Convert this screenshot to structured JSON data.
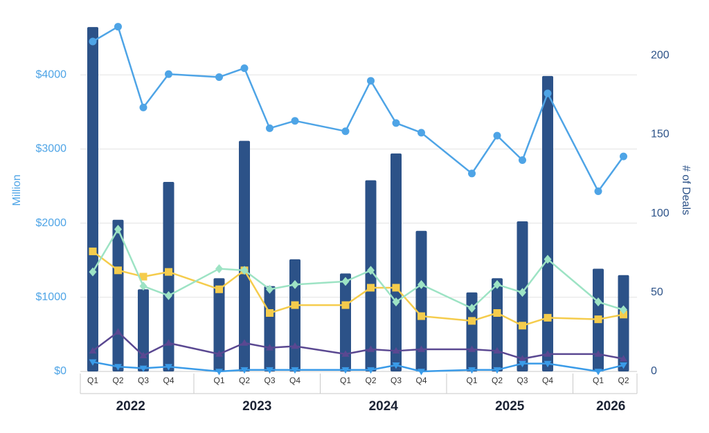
{
  "chart_data": {
    "type": "bar",
    "y_label": "Million",
    "y2_label": "# of Deals",
    "categories": [
      "Q1",
      "Q2",
      "Q3",
      "Q4",
      "Q1",
      "Q2",
      "Q3",
      "Q4",
      "Q1",
      "Q2",
      "Q3",
      "Q4",
      "Q1",
      "Q2",
      "Q3",
      "Q4",
      "Q1",
      "Q2"
    ],
    "groups": [
      {
        "label": "2022",
        "size": 4
      },
      {
        "label": "2023",
        "size": 4
      },
      {
        "label": "2024",
        "size": 4
      },
      {
        "label": "2025",
        "size": 4
      },
      {
        "label": "2026",
        "size": 2
      }
    ],
    "ylim": [
      0,
      4730
    ],
    "yticks": [
      {
        "value": 0,
        "label": "$0"
      },
      {
        "value": 1000,
        "label": "$1000"
      },
      {
        "value": 2000,
        "label": "$2000"
      },
      {
        "value": 3000,
        "label": "$3000"
      },
      {
        "value": 4000,
        "label": "$4000"
      }
    ],
    "y2lim": [
      0,
      222
    ],
    "y2ticks": [
      0,
      50,
      100,
      150,
      200
    ],
    "grid": true,
    "series": [
      {
        "type": "bar",
        "axis": "y2",
        "color": "#2c5288",
        "values": [
          218,
          96,
          52,
          120,
          59,
          146,
          54,
          71,
          62,
          121,
          138,
          89,
          50,
          59,
          95,
          187,
          65,
          61
        ]
      },
      {
        "type": "line",
        "axis": "y",
        "color": "#4ea4e6",
        "marker": "circle",
        "values": [
          4450,
          4650,
          3560,
          4010,
          3970,
          4090,
          3280,
          3380,
          3240,
          3920,
          3350,
          3220,
          2670,
          3180,
          2850,
          3750,
          2430,
          2900
        ]
      },
      {
        "type": "line",
        "axis": "y2",
        "color": "#f5cc4c",
        "marker": "square",
        "values": [
          76,
          64,
          60,
          63,
          52,
          64,
          37,
          42,
          42,
          53,
          53,
          35,
          32,
          37,
          29,
          34,
          33,
          36
        ]
      },
      {
        "type": "line",
        "axis": "y2",
        "color": "#9de3c4",
        "marker": "diamond",
        "values": [
          63,
          90,
          54,
          48,
          65,
          64,
          52,
          55,
          57,
          64,
          44,
          55,
          40,
          55,
          50,
          71,
          44,
          39
        ]
      },
      {
        "type": "line",
        "axis": "y2",
        "color": "#5a4891",
        "marker": "triangle",
        "values": [
          13,
          25,
          10,
          18,
          11,
          18,
          15,
          16,
          11,
          14,
          13,
          14,
          14,
          13,
          8,
          11,
          11,
          8
        ]
      },
      {
        "type": "line",
        "axis": "y2",
        "color": "#3a9be8",
        "marker": "triangle-down",
        "values": [
          6,
          3,
          2,
          3,
          0,
          1,
          1,
          1,
          1,
          1,
          4,
          0,
          1,
          1,
          5,
          5,
          0,
          4
        ]
      }
    ]
  }
}
